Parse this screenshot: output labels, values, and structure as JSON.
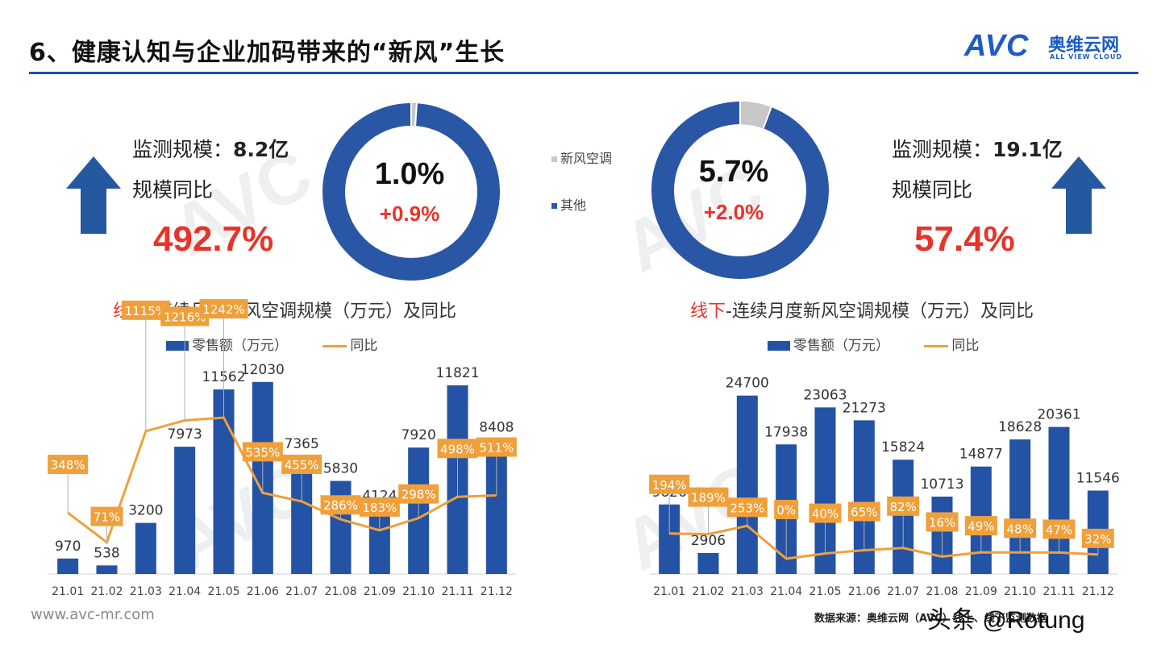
{
  "title": "6、健康认知与企业加码带来的“新风”生长",
  "logo": {
    "main": "AVC",
    "cn": "奥维云网",
    "en": "ALL VIEW CLOUD"
  },
  "online_summary": {
    "scale_label": "监测规模：",
    "scale_value": "8.2亿",
    "yoy_label": "规模同比",
    "yoy_value": "492.7%",
    "share": "1.0%",
    "share_change": "+0.9%",
    "share_fraction": 0.01
  },
  "offline_summary": {
    "scale_label": "监测规模：",
    "scale_value": "19.1亿",
    "yoy_label": "规模同比",
    "yoy_value": "57.4%",
    "share": "5.7%",
    "share_change": "+2.0%",
    "share_fraction": 0.057
  },
  "donut_legend": [
    "新风空调",
    "其他"
  ],
  "colors": {
    "bar": "#2452a4",
    "line": "#f0a03a",
    "red": "#e8332a",
    "donut_other": "#2a56a6",
    "donut_fresh": "#c8c8c8"
  },
  "chart_data": [
    {
      "type": "bar",
      "title_highlight": "线上",
      "title_rest": "-连续月度新风空调规模（万元）及同比",
      "legend": [
        "零售额（万元）",
        "同比"
      ],
      "categories": [
        "21.01",
        "21.02",
        "21.03",
        "21.04",
        "21.05",
        "21.06",
        "21.07",
        "21.08",
        "21.09",
        "21.10",
        "21.11",
        "21.12"
      ],
      "series": [
        {
          "name": "零售额（万元）",
          "type": "bar",
          "values": [
            970,
            538,
            3200,
            7973,
            11562,
            12030,
            7365,
            5830,
            4124,
            7920,
            11821,
            8408
          ]
        },
        {
          "name": "同比",
          "type": "line",
          "values": [
            348,
            71,
            1115,
            1216,
            1242,
            535,
            455,
            286,
            183,
            298,
            498,
            511
          ],
          "labels": [
            "348%",
            "71%",
            "1115%",
            "1216%",
            "1242%",
            "535%",
            "455%",
            "286%",
            "183%",
            "298%",
            "498%",
            "511%"
          ]
        }
      ]
    },
    {
      "type": "bar",
      "title_highlight": "线下",
      "title_rest": "-连续月度新风空调规模（万元）及同比",
      "legend": [
        "零售额（万元）",
        "同比"
      ],
      "categories": [
        "21.01",
        "21.02",
        "21.03",
        "21.04",
        "21.05",
        "21.06",
        "21.07",
        "21.08",
        "21.09",
        "21.10",
        "21.11",
        "21.12"
      ],
      "series": [
        {
          "name": "零售额（万元）",
          "type": "bar",
          "values": [
            9626,
            2906,
            24700,
            17938,
            23063,
            21273,
            15824,
            10713,
            14877,
            18628,
            20361,
            11546
          ]
        },
        {
          "name": "同比",
          "type": "line",
          "values": [
            194,
            189,
            253,
            0,
            40,
            65,
            82,
            16,
            49,
            48,
            47,
            32
          ],
          "labels": [
            "194%",
            "189%",
            "253%",
            "0%",
            "40%",
            "65%",
            "82%",
            "16%",
            "49%",
            "48%",
            "47%",
            "32%"
          ]
        }
      ]
    }
  ],
  "footer": {
    "url": "www.avc-mr.com",
    "source": "数据来源：奥维云网（AVC）线上、线下监测数据",
    "watermark": "头条 @Rotung"
  }
}
